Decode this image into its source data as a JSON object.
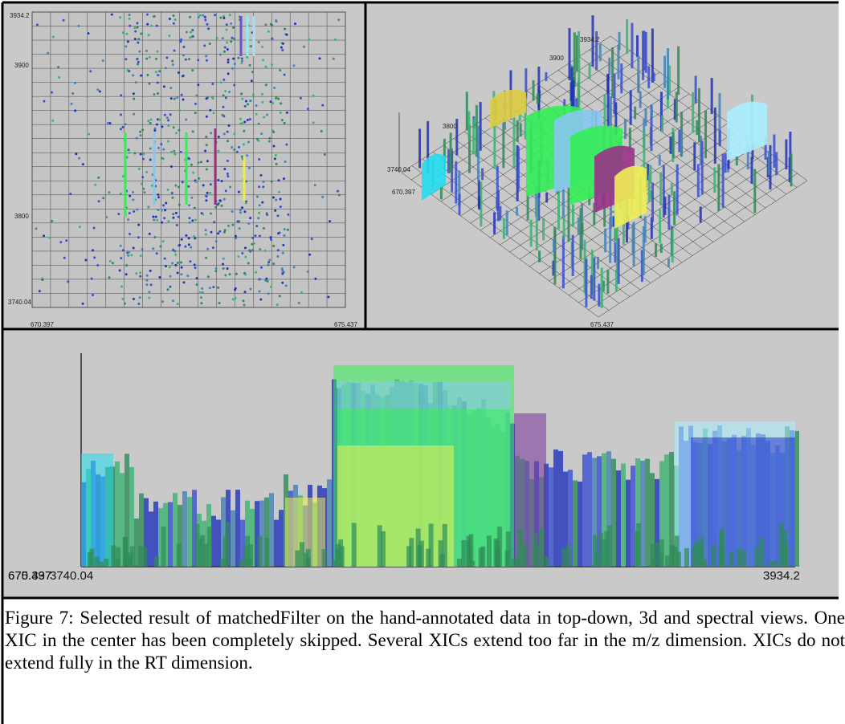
{
  "panels": {
    "top_down": {
      "y_labels": [
        "3934.2",
        "3900",
        "3800",
        "3740.04"
      ],
      "x_labels": [
        "670.397",
        "675.437"
      ]
    },
    "view_3d": {
      "y_labels": [
        "3934.2",
        "3900",
        "3800",
        "3740.04"
      ],
      "x_labels": [
        "670.397",
        "675.437"
      ]
    },
    "spectral": {
      "x_labels": [
        "670.397",
        "675.437",
        "3740.04",
        "3934.2"
      ]
    }
  },
  "caption": "Figure 7: Selected result of matchedFilter on the hand-annotated data in top-down, 3d and spectral views. One XIC in the center has been completely skipped. Several XICs extend too far in the m/z dimension. XICs do not extend fully in the RT dimension."
}
